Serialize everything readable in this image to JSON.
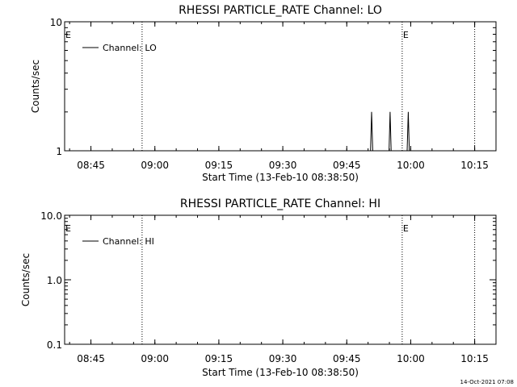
{
  "chart_data": [
    {
      "type": "line",
      "title": "RHESSI PARTICLE_RATE Channel: LO",
      "xlabel": "Start Time (13-Feb-10 08:38:50)",
      "ylabel": "Counts/sec",
      "yscale": "log",
      "ylim": [
        1,
        10
      ],
      "xlim": [
        "08:38:50",
        "10:20:00"
      ],
      "yticks": [
        "1",
        "10"
      ],
      "xticks": [
        "08:45",
        "09:00",
        "09:15",
        "09:30",
        "09:45",
        "10:00",
        "10:15"
      ],
      "legend": "top-left",
      "series": [
        {
          "name": "Channel: LO",
          "x": [
            "09:50:35",
            "09:50:50",
            "09:51:05",
            "09:54:55",
            "09:55:10",
            "09:55:25",
            "09:59:10",
            "09:59:25",
            "09:59:40"
          ],
          "y": [
            1,
            2,
            1,
            1,
            2,
            1,
            1,
            2,
            1
          ]
        }
      ],
      "vlines": [
        "08:57:00",
        "09:58:00",
        "10:15:00"
      ],
      "annotations": [
        {
          "text": "E",
          "x": "08:38:50"
        },
        {
          "text": "E",
          "x": "09:58:00"
        }
      ]
    },
    {
      "type": "line",
      "title": "RHESSI PARTICLE_RATE Channel: HI",
      "xlabel": "Start Time (13-Feb-10 08:38:50)",
      "ylabel": "Counts/sec",
      "yscale": "log",
      "ylim": [
        0.1,
        10
      ],
      "xlim": [
        "08:38:50",
        "10:20:00"
      ],
      "yticks": [
        "0.1",
        "1.0",
        "10.0"
      ],
      "xticks": [
        "08:45",
        "09:00",
        "09:15",
        "09:30",
        "09:45",
        "10:00",
        "10:15"
      ],
      "legend": "top-left",
      "series": [
        {
          "name": "Channel: HI",
          "x": [],
          "y": []
        }
      ],
      "vlines": [
        "08:57:00",
        "09:58:00",
        "10:15:00"
      ],
      "annotations": [
        {
          "text": "E",
          "x": "08:38:50"
        },
        {
          "text": "E",
          "x": "09:58:00"
        }
      ]
    }
  ],
  "footer": {
    "timestamp": "14-Oct-2021 07:08"
  }
}
